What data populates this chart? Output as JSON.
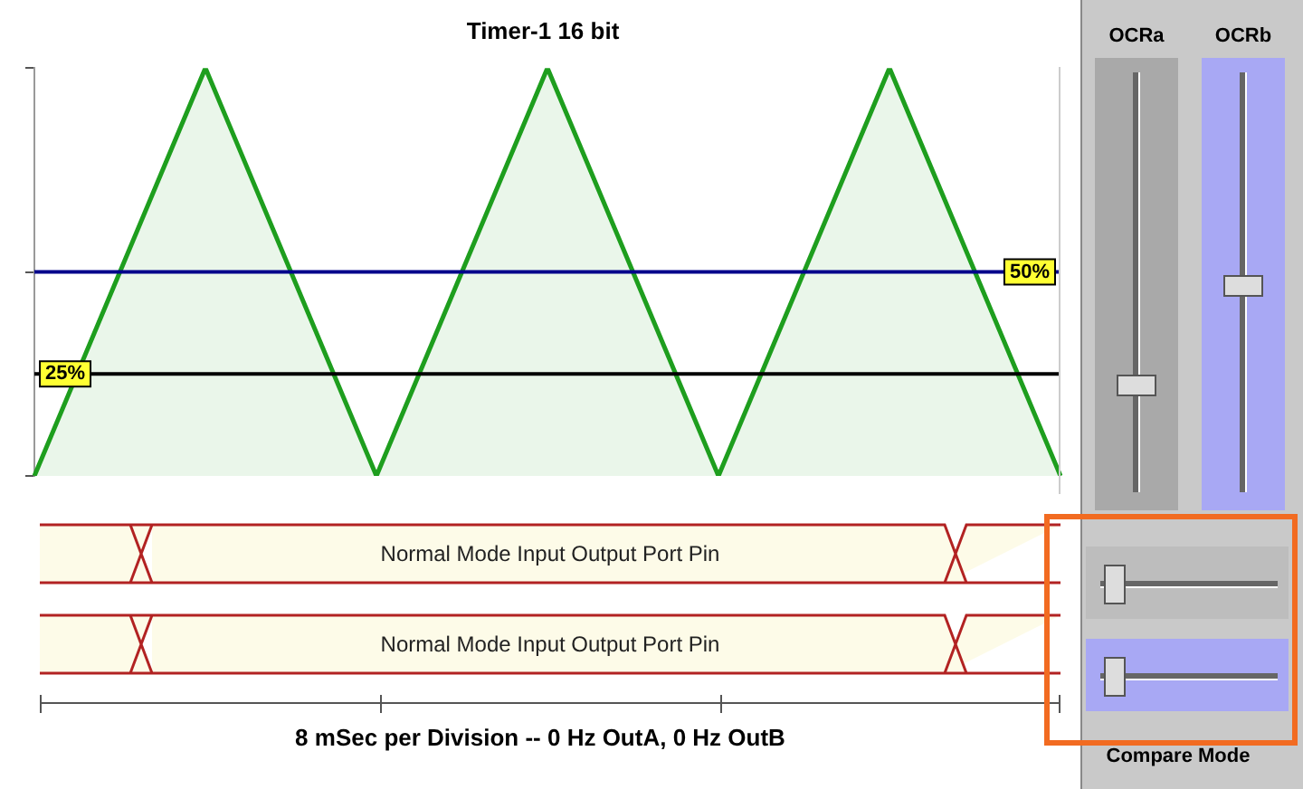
{
  "chart_data": {
    "type": "area",
    "title": "Timer-1 16 bit",
    "categories": [
      null,
      null,
      null,
      null,
      null,
      null,
      null
    ],
    "ylim": [
      0,
      100
    ],
    "yticks": [
      {
        "value": 0,
        "label": null
      },
      {
        "value": 50,
        "label": null
      },
      {
        "value": 100,
        "label": null
      }
    ],
    "series": [
      {
        "color": "#1e9e1e",
        "values": [
          0,
          100,
          0,
          100,
          0,
          100,
          0
        ]
      }
    ],
    "ref_lines": [
      {
        "axis": "y",
        "value": 25,
        "label": "25%",
        "color": "#000000"
      },
      {
        "axis": "y",
        "value": 50,
        "label": "50%",
        "color": "#00008b"
      }
    ],
    "annotations": [
      "Normal Mode  Input Output Port Pin",
      "Normal Mode  Input Output Port Pin",
      "OCRa",
      "OCRb",
      "Compare Mode",
      "8 mSec per Division -- 0 Hz OutA,  0 Hz OutB"
    ],
    "grid": false,
    "legend": false
  }
}
